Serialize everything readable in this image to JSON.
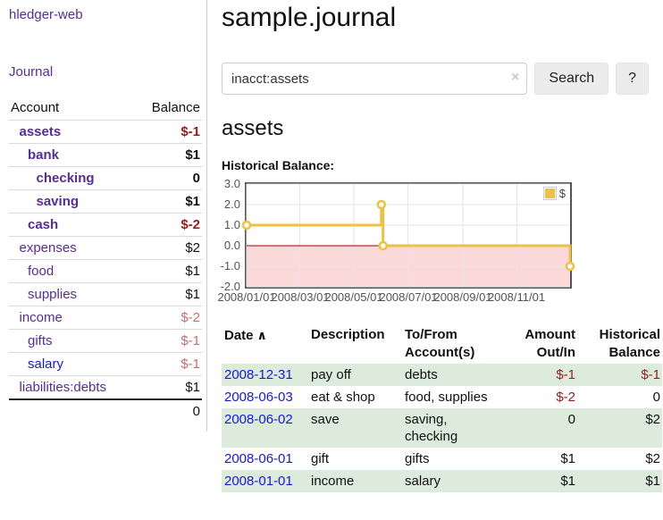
{
  "colors": {
    "link_purple": "#552D99",
    "link_blue": "#1717DF",
    "negative_strong": "#9A1B1B",
    "negative_soft": "#C56F6F",
    "row_green": "#DCEBDC",
    "chart_series": "#EDC240",
    "chart_negative_fill": "#FBD9D9",
    "chart_zero_line": "#990000",
    "chart_grid": "#e6e6e6"
  },
  "sidebar": {
    "brand": "hledger-web",
    "nav": {
      "journal": "Journal"
    },
    "accounts": {
      "headers": {
        "account": "Account",
        "balance": "Balance"
      },
      "rows": [
        {
          "name": "assets",
          "balance": "$-1",
          "depth": 1,
          "bold": true,
          "neg": "strong",
          "link": "purple"
        },
        {
          "name": "bank",
          "balance": "$1",
          "depth": 2,
          "bold": true,
          "neg": "none",
          "link": "purple"
        },
        {
          "name": "checking",
          "balance": "0",
          "depth": 3,
          "bold": true,
          "neg": "none",
          "link": "purple"
        },
        {
          "name": "saving",
          "balance": "$1",
          "depth": 3,
          "bold": true,
          "neg": "none",
          "link": "purple"
        },
        {
          "name": "cash",
          "balance": "$-2",
          "depth": 2,
          "bold": true,
          "neg": "strong",
          "link": "purple"
        },
        {
          "name": "expenses",
          "balance": "$2",
          "depth": 1,
          "bold": false,
          "neg": "none",
          "link": "purple"
        },
        {
          "name": "food",
          "balance": "$1",
          "depth": 2,
          "bold": false,
          "neg": "none",
          "link": "purple"
        },
        {
          "name": "supplies",
          "balance": "$1",
          "depth": 2,
          "bold": false,
          "neg": "none",
          "link": "purple"
        },
        {
          "name": "income",
          "balance": "$-2",
          "depth": 1,
          "bold": false,
          "neg": "soft",
          "link": "purple"
        },
        {
          "name": "gifts",
          "balance": "$-1",
          "depth": 2,
          "bold": false,
          "neg": "soft",
          "link": "purple"
        },
        {
          "name": "salary",
          "balance": "$-1",
          "depth": 2,
          "bold": false,
          "neg": "soft",
          "link": "blue"
        },
        {
          "name": "liabilities:debts",
          "balance": "$1",
          "depth": 1,
          "bold": false,
          "neg": "none",
          "link": "purple"
        }
      ],
      "total": "0"
    }
  },
  "main": {
    "title": "sample.journal",
    "search": {
      "value": "inacct:assets",
      "clear_icon": "×",
      "button": "Search",
      "help": "?"
    },
    "account_heading": "assets",
    "section_label": "Historical Balance:"
  },
  "chart_data": {
    "type": "line",
    "step": true,
    "title": "Historical Balance of assets",
    "x_range": [
      "2008-01-01",
      "2008-12-31"
    ],
    "ylim": [
      -2.0,
      3.0
    ],
    "y_ticks": [
      3.0,
      2.0,
      1.0,
      0.0,
      -1.0,
      -2.0
    ],
    "x_ticks": [
      "2008/01/01",
      "2008/03/01",
      "2008/05/01",
      "2008/07/01",
      "2008/09/01",
      "2008/11/01"
    ],
    "grid": true,
    "legend": {
      "label": "$",
      "position": "top-right"
    },
    "series": [
      {
        "name": "$",
        "color": "#EDC240",
        "points": [
          [
            "2008-01-01",
            1
          ],
          [
            "2008-06-01",
            2
          ],
          [
            "2008-06-03",
            0
          ],
          [
            "2008-12-31",
            -1
          ]
        ]
      }
    ]
  },
  "register": {
    "headers": [
      {
        "label": "Date",
        "sort_icon": "∧",
        "align": "left"
      },
      {
        "label": "Description",
        "align": "left"
      },
      {
        "label": "To/From Account(s)",
        "align": "left"
      },
      {
        "label": "Amount Out/In",
        "align": "right"
      },
      {
        "label": "Historical Balance",
        "align": "right"
      }
    ],
    "rows": [
      {
        "date": "2008-12-31",
        "description": "pay off",
        "accounts": "debts",
        "amount": "$-1",
        "balance": "$-1",
        "amount_neg": true,
        "balance_neg": true
      },
      {
        "date": "2008-06-03",
        "description": "eat & shop",
        "accounts": "food, supplies",
        "amount": "$-2",
        "balance": "0",
        "amount_neg": true,
        "balance_neg": false
      },
      {
        "date": "2008-06-02",
        "description": "save",
        "accounts": "saving, checking",
        "amount": "0",
        "balance": "$2",
        "amount_neg": false,
        "balance_neg": false
      },
      {
        "date": "2008-06-01",
        "description": "gift",
        "accounts": "gifts",
        "amount": "$1",
        "balance": "$2",
        "amount_neg": false,
        "balance_neg": false
      },
      {
        "date": "2008-01-01",
        "description": "income",
        "accounts": "salary",
        "amount": "$1",
        "balance": "$1",
        "amount_neg": false,
        "balance_neg": false
      }
    ]
  }
}
